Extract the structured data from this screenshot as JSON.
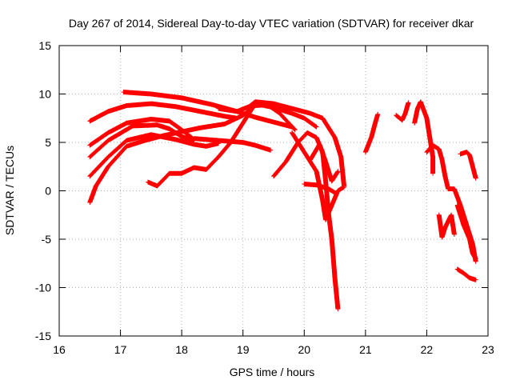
{
  "chart_data": {
    "type": "scatter",
    "title": "Day 267 of 2014, Sidereal Day-to-day VTEC variation (SDTVAR) for receiver dkar",
    "xlabel": "GPS time / hours",
    "ylabel": "SDTVAR / TECUs",
    "xlim": [
      16,
      23
    ],
    "ylim": [
      -15,
      15
    ],
    "xticks": [
      "16",
      "17",
      "18",
      "19",
      "20",
      "21",
      "22",
      "23"
    ],
    "yticks": [
      "-15",
      "-10",
      "-5",
      "0",
      "5",
      "10",
      "15"
    ],
    "grid": true,
    "marker": "+",
    "marker_color": "#ff0000",
    "tracks": [
      {
        "name": "track-1",
        "points": [
          [
            16.5,
            7.2
          ],
          [
            16.8,
            8.2
          ],
          [
            17.1,
            8.8
          ],
          [
            17.5,
            9.0
          ],
          [
            17.9,
            8.7
          ],
          [
            18.3,
            8.2
          ],
          [
            18.7,
            7.7
          ],
          [
            18.9,
            7.5
          ]
        ]
      },
      {
        "name": "track-2",
        "points": [
          [
            17.05,
            10.2
          ],
          [
            17.5,
            10.0
          ],
          [
            18.0,
            9.6
          ],
          [
            18.5,
            8.9
          ],
          [
            18.9,
            8.2
          ],
          [
            19.2,
            7.6
          ],
          [
            19.5,
            7.1
          ],
          [
            19.8,
            6.6
          ]
        ]
      },
      {
        "name": "track-3",
        "points": [
          [
            16.5,
            4.7
          ],
          [
            16.8,
            6.0
          ],
          [
            17.1,
            7.0
          ],
          [
            17.5,
            7.4
          ],
          [
            17.8,
            7.2
          ],
          [
            18.0,
            6.3
          ],
          [
            18.2,
            5.3
          ]
        ]
      },
      {
        "name": "track-4",
        "points": [
          [
            16.5,
            3.5
          ],
          [
            16.8,
            5.2
          ],
          [
            17.2,
            6.7
          ],
          [
            17.6,
            6.8
          ],
          [
            17.8,
            6.4
          ],
          [
            18.0,
            5.6
          ],
          [
            18.2,
            5.2
          ]
        ]
      },
      {
        "name": "track-5",
        "points": [
          [
            16.5,
            1.5
          ],
          [
            16.8,
            3.5
          ],
          [
            17.1,
            5.2
          ],
          [
            17.5,
            5.8
          ],
          [
            17.9,
            5.3
          ],
          [
            18.2,
            4.8
          ],
          [
            18.4,
            4.6
          ],
          [
            18.6,
            4.9
          ]
        ]
      },
      {
        "name": "track-6",
        "points": [
          [
            16.5,
            -1.2
          ],
          [
            16.6,
            0.5
          ],
          [
            16.8,
            2.5
          ],
          [
            17.1,
            4.6
          ],
          [
            17.4,
            5.2
          ],
          [
            17.7,
            5.7
          ],
          [
            18.0,
            6.1
          ],
          [
            18.3,
            6.5
          ],
          [
            18.7,
            6.9
          ],
          [
            19.0,
            7.8
          ],
          [
            19.2,
            8.8
          ],
          [
            19.4,
            8.9
          ],
          [
            19.6,
            8.0
          ],
          [
            19.85,
            6.3
          ]
        ]
      },
      {
        "name": "track-7",
        "points": [
          [
            18.2,
            5.4
          ],
          [
            18.6,
            5.2
          ],
          [
            19.0,
            5.0
          ],
          [
            19.2,
            4.7
          ],
          [
            19.45,
            4.2
          ]
        ]
      },
      {
        "name": "track-8",
        "points": [
          [
            17.45,
            0.9
          ],
          [
            17.6,
            0.5
          ],
          [
            17.8,
            1.8
          ],
          [
            18.0,
            1.8
          ],
          [
            18.2,
            2.4
          ],
          [
            18.4,
            2.2
          ],
          [
            18.6,
            3.5
          ],
          [
            18.8,
            5.0
          ],
          [
            19.0,
            7.0
          ],
          [
            19.2,
            9.0
          ],
          [
            19.5,
            8.6
          ],
          [
            19.8,
            8.0
          ],
          [
            20.0,
            7.5
          ],
          [
            20.2,
            6.6
          ]
        ]
      },
      {
        "name": "track-9",
        "points": [
          [
            18.6,
            8.5
          ],
          [
            18.9,
            8.2
          ],
          [
            19.1,
            8.7
          ],
          [
            19.2,
            9.2
          ],
          [
            19.5,
            9.0
          ],
          [
            19.8,
            8.5
          ],
          [
            20.1,
            8.0
          ],
          [
            20.3,
            7.5
          ],
          [
            20.5,
            5.5
          ],
          [
            20.6,
            3.5
          ],
          [
            20.65,
            0.5
          ]
        ]
      },
      {
        "name": "track-10",
        "points": [
          [
            19.5,
            1.5
          ],
          [
            19.7,
            3.0
          ],
          [
            19.9,
            5.0
          ],
          [
            20.05,
            6.0
          ],
          [
            20.2,
            5.5
          ],
          [
            20.3,
            4.0
          ],
          [
            20.35,
            1.0
          ],
          [
            20.4,
            -2.5
          ],
          [
            20.45,
            -5.0
          ],
          [
            20.5,
            -9.0
          ],
          [
            20.55,
            -12.2
          ]
        ]
      },
      {
        "name": "track-11",
        "points": [
          [
            19.8,
            6.0
          ],
          [
            20.0,
            4.0
          ],
          [
            20.2,
            2.0
          ],
          [
            20.3,
            -1.0
          ],
          [
            20.35,
            -3.0
          ],
          [
            20.45,
            -1.5
          ],
          [
            20.55,
            0.0
          ],
          [
            20.65,
            0.4
          ]
        ]
      },
      {
        "name": "track-12",
        "points": [
          [
            20.0,
            0.7
          ],
          [
            20.2,
            0.6
          ],
          [
            20.4,
            0.2
          ],
          [
            20.5,
            -0.2
          ]
        ]
      },
      {
        "name": "track-13",
        "points": [
          [
            21.0,
            4.0
          ],
          [
            21.1,
            5.6
          ],
          [
            21.15,
            6.8
          ],
          [
            21.2,
            7.9
          ]
        ]
      },
      {
        "name": "track-14",
        "points": [
          [
            21.5,
            7.8
          ],
          [
            21.6,
            7.3
          ],
          [
            21.65,
            8.0
          ],
          [
            21.7,
            9.1
          ]
        ]
      },
      {
        "name": "track-15",
        "points": [
          [
            21.8,
            7.0
          ],
          [
            21.85,
            8.5
          ],
          [
            21.9,
            9.2
          ],
          [
            22.0,
            7.5
          ],
          [
            22.05,
            5.5
          ],
          [
            22.1,
            3.5
          ],
          [
            22.1,
            1.8
          ]
        ]
      },
      {
        "name": "track-16",
        "points": [
          [
            22.0,
            4.0
          ],
          [
            22.1,
            4.7
          ],
          [
            22.2,
            4.3
          ],
          [
            22.25,
            3.2
          ],
          [
            22.3,
            1.5
          ],
          [
            22.35,
            0.2
          ],
          [
            22.45,
            0.2
          ],
          [
            22.55,
            -1.5
          ],
          [
            22.65,
            -3.5
          ],
          [
            22.75,
            -5.5
          ],
          [
            22.8,
            -7.3
          ]
        ]
      },
      {
        "name": "track-17",
        "points": [
          [
            22.55,
            3.8
          ],
          [
            22.65,
            4.0
          ],
          [
            22.7,
            3.7
          ],
          [
            22.75,
            2.5
          ],
          [
            22.8,
            1.3
          ]
        ]
      },
      {
        "name": "track-18",
        "points": [
          [
            22.2,
            -2.5
          ],
          [
            22.25,
            -4.8
          ],
          [
            22.3,
            -3.8
          ],
          [
            22.4,
            -2.5
          ],
          [
            22.45,
            -4.5
          ]
        ]
      },
      {
        "name": "track-19",
        "points": [
          [
            22.5,
            -1.5
          ],
          [
            22.6,
            -3.5
          ],
          [
            22.7,
            -5.0
          ],
          [
            22.75,
            -6.5
          ],
          [
            22.8,
            -7.0
          ]
        ]
      },
      {
        "name": "track-20",
        "points": [
          [
            22.5,
            -8.1
          ],
          [
            22.6,
            -8.5
          ],
          [
            22.7,
            -9.0
          ],
          [
            22.8,
            -9.2
          ]
        ]
      },
      {
        "name": "track-21",
        "points": [
          [
            20.1,
            3.2
          ],
          [
            20.25,
            4.8
          ],
          [
            20.35,
            3.0
          ],
          [
            20.45,
            1.0
          ],
          [
            20.55,
            2.0
          ]
        ]
      }
    ]
  }
}
